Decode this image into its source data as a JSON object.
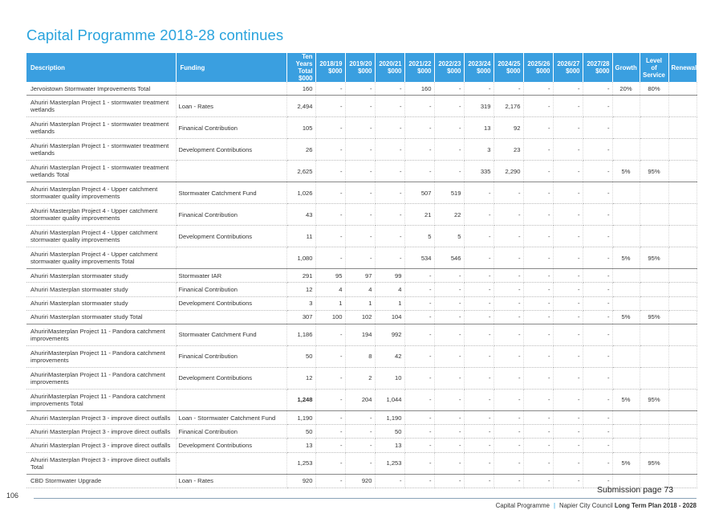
{
  "title": "Capital Programme 2018-28 continues",
  "headers": {
    "description": "Description",
    "funding": "Funding",
    "years": [
      "Ten Years Total $000",
      "2018/19 $000",
      "2019/20 $000",
      "2020/21 $000",
      "2021/22 $000",
      "2022/23 $000",
      "2023/24 $000",
      "2024/25 $000",
      "2025/26 $000",
      "2026/27 $000",
      "2027/28 $000"
    ],
    "growth": "Growth",
    "los": "Level of Service",
    "renewal": "Renewal"
  },
  "rows": [
    {
      "desc": "Jervoistown Stormwater Improvements Total",
      "funding": "",
      "total": "160",
      "y": [
        "-",
        "-",
        "-",
        "160",
        "-",
        "-",
        "-",
        "-",
        "-",
        "-"
      ],
      "growth": "20%",
      "los": "80%",
      "renewal": "",
      "type": "total"
    },
    {
      "desc": "Ahuriri Masterplan Project 1 - stormwater treatment wetlands",
      "funding": "Loan - Rates",
      "total": "2,494",
      "y": [
        "-",
        "-",
        "-",
        "-",
        "-",
        "319",
        "2,176",
        "-",
        "-",
        "-"
      ],
      "growth": "",
      "los": "",
      "renewal": "",
      "type": "tall"
    },
    {
      "desc": "Ahuriri Masterplan Project 1 - stormwater treatment wetlands",
      "funding": "Finanical Contribution",
      "total": "105",
      "y": [
        "-",
        "-",
        "-",
        "-",
        "-",
        "13",
        "92",
        "-",
        "-",
        "-"
      ],
      "growth": "",
      "los": "",
      "renewal": "",
      "type": "tall"
    },
    {
      "desc": "Ahuriri Masterplan Project 1 - stormwater treatment wetlands",
      "funding": "Development Contributions",
      "total": "26",
      "y": [
        "-",
        "-",
        "-",
        "-",
        "-",
        "3",
        "23",
        "-",
        "-",
        "-"
      ],
      "growth": "",
      "los": "",
      "renewal": "",
      "type": "tall"
    },
    {
      "desc": "Ahuriri Masterplan Project 1 - stormwater treatment wetlands Total",
      "funding": "",
      "total": "2,625",
      "y": [
        "-",
        "-",
        "-",
        "-",
        "-",
        "335",
        "2,290",
        "-",
        "-",
        "-"
      ],
      "growth": "5%",
      "los": "95%",
      "renewal": "",
      "type": "tall total"
    },
    {
      "desc": "Ahuriri Masterplan Project 4 - Upper catchment stormwater quality improvements",
      "funding": "Stormwater Catchment Fund",
      "total": "1,026",
      "y": [
        "-",
        "-",
        "-",
        "507",
        "519",
        "-",
        "-",
        "-",
        "-",
        "-"
      ],
      "growth": "",
      "los": "",
      "renewal": "",
      "type": "tall"
    },
    {
      "desc": "Ahuriri Masterplan Project 4 - Upper catchment stormwater quality improvements",
      "funding": "Finanical Contribution",
      "total": "43",
      "y": [
        "-",
        "-",
        "-",
        "21",
        "22",
        "-",
        "-",
        "-",
        "-",
        "-"
      ],
      "growth": "",
      "los": "",
      "renewal": "",
      "type": "tall"
    },
    {
      "desc": "Ahuriri Masterplan Project 4 - Upper catchment stormwater quality improvements",
      "funding": "Development Contributions",
      "total": "11",
      "y": [
        "-",
        "-",
        "-",
        "5",
        "5",
        "-",
        "-",
        "-",
        "-",
        "-"
      ],
      "growth": "",
      "los": "",
      "renewal": "",
      "type": "tall"
    },
    {
      "desc": "Ahuriri Masterplan Project 4 - Upper catchment stormwater quality improvements Total",
      "funding": "",
      "total": "1,080",
      "y": [
        "-",
        "-",
        "-",
        "534",
        "546",
        "-",
        "-",
        "-",
        "-",
        "-"
      ],
      "growth": "5%",
      "los": "95%",
      "renewal": "",
      "type": "tall total"
    },
    {
      "desc": "Ahuriri Masterplan stormwater study",
      "funding": "Stormwater IAR",
      "total": "291",
      "y": [
        "95",
        "97",
        "99",
        "-",
        "-",
        "-",
        "-",
        "-",
        "-",
        "-"
      ],
      "growth": "",
      "los": "",
      "renewal": "",
      "type": ""
    },
    {
      "desc": "Ahuriri Masterplan stormwater study",
      "funding": "Finanical Contribution",
      "total": "12",
      "y": [
        "4",
        "4",
        "4",
        "-",
        "-",
        "-",
        "-",
        "-",
        "-",
        "-"
      ],
      "growth": "",
      "los": "",
      "renewal": "",
      "type": ""
    },
    {
      "desc": "Ahuriri Masterplan stormwater study",
      "funding": "Development Contributions",
      "total": "3",
      "y": [
        "1",
        "1",
        "1",
        "-",
        "-",
        "-",
        "-",
        "-",
        "-",
        "-"
      ],
      "growth": "",
      "los": "",
      "renewal": "",
      "type": ""
    },
    {
      "desc": "Ahuriri Masterplan stormwater study Total",
      "funding": "",
      "total": "307",
      "y": [
        "100",
        "102",
        "104",
        "-",
        "-",
        "-",
        "-",
        "-",
        "-",
        "-"
      ],
      "growth": "5%",
      "los": "95%",
      "renewal": "",
      "type": "total"
    },
    {
      "desc": "AhuririMasterplan Project 11 - Pandora catchment improvements",
      "funding": "Stormwater Catchment Fund",
      "total": "1,186",
      "y": [
        "-",
        "194",
        "992",
        "-",
        "-",
        "-",
        "-",
        "-",
        "-",
        "-"
      ],
      "growth": "",
      "los": "",
      "renewal": "",
      "type": "tall"
    },
    {
      "desc": "AhuririMasterplan Project 11 - Pandora catchment improvements",
      "funding": "Finanical Contribution",
      "total": "50",
      "y": [
        "-",
        "8",
        "42",
        "-",
        "-",
        "-",
        "-",
        "-",
        "-",
        "-"
      ],
      "growth": "",
      "los": "",
      "renewal": "",
      "type": "tall"
    },
    {
      "desc": "AhuririMasterplan Project 11 - Pandora catchment improvements",
      "funding": "Development Contributions",
      "total": "12",
      "y": [
        "-",
        "2",
        "10",
        "-",
        "-",
        "-",
        "-",
        "-",
        "-",
        "-"
      ],
      "growth": "",
      "los": "",
      "renewal": "",
      "type": "tall"
    },
    {
      "desc": "AhuririMasterplan Project 11 - Pandora catchment improvements Total",
      "funding": "",
      "total": "1,248",
      "y": [
        "-",
        "204",
        "1,044",
        "-",
        "-",
        "-",
        "-",
        "-",
        "-",
        "-"
      ],
      "growth": "5%",
      "los": "95%",
      "renewal": "",
      "type": "tall total bold-total"
    },
    {
      "desc": "Ahuriri Masterplan Project 3 - improve direct outfalls",
      "funding": "Loan - Stormwater Catchment Fund",
      "total": "1,190",
      "y": [
        "-",
        "-",
        "1,190",
        "-",
        "-",
        "-",
        "-",
        "-",
        "-",
        "-"
      ],
      "growth": "",
      "los": "",
      "renewal": "",
      "type": ""
    },
    {
      "desc": "Ahuriri Masterplan Project 3 - improve direct outfalls",
      "funding": "Finanical Contribution",
      "total": "50",
      "y": [
        "-",
        "-",
        "50",
        "-",
        "-",
        "-",
        "-",
        "-",
        "-",
        "-"
      ],
      "growth": "",
      "los": "",
      "renewal": "",
      "type": ""
    },
    {
      "desc": "Ahuriri Masterplan Project 3 - improve direct outfalls",
      "funding": "Development Contributions",
      "total": "13",
      "y": [
        "-",
        "-",
        "13",
        "-",
        "-",
        "-",
        "-",
        "-",
        "-",
        "-"
      ],
      "growth": "",
      "los": "",
      "renewal": "",
      "type": ""
    },
    {
      "desc": "Ahuriri Masterplan Project 3 - improve direct outfalls Total",
      "funding": "",
      "total": "1,253",
      "y": [
        "-",
        "-",
        "1,253",
        "-",
        "-",
        "-",
        "-",
        "-",
        "-",
        "-"
      ],
      "growth": "5%",
      "los": "95%",
      "renewal": "",
      "type": "tall total"
    },
    {
      "desc": "CBD Stormwater Upgrade",
      "funding": "Loan - Rates",
      "total": "920",
      "y": [
        "-",
        "920",
        "-",
        "-",
        "-",
        "-",
        "-",
        "-",
        "-",
        "-"
      ],
      "growth": "",
      "los": "",
      "renewal": "",
      "type": ""
    }
  ],
  "footer": {
    "page_number": "106",
    "submission": "Submission page 73",
    "section": "Capital Programme",
    "council": "Napier City Council",
    "plan": "Long Term Plan 2018 - 2028"
  }
}
